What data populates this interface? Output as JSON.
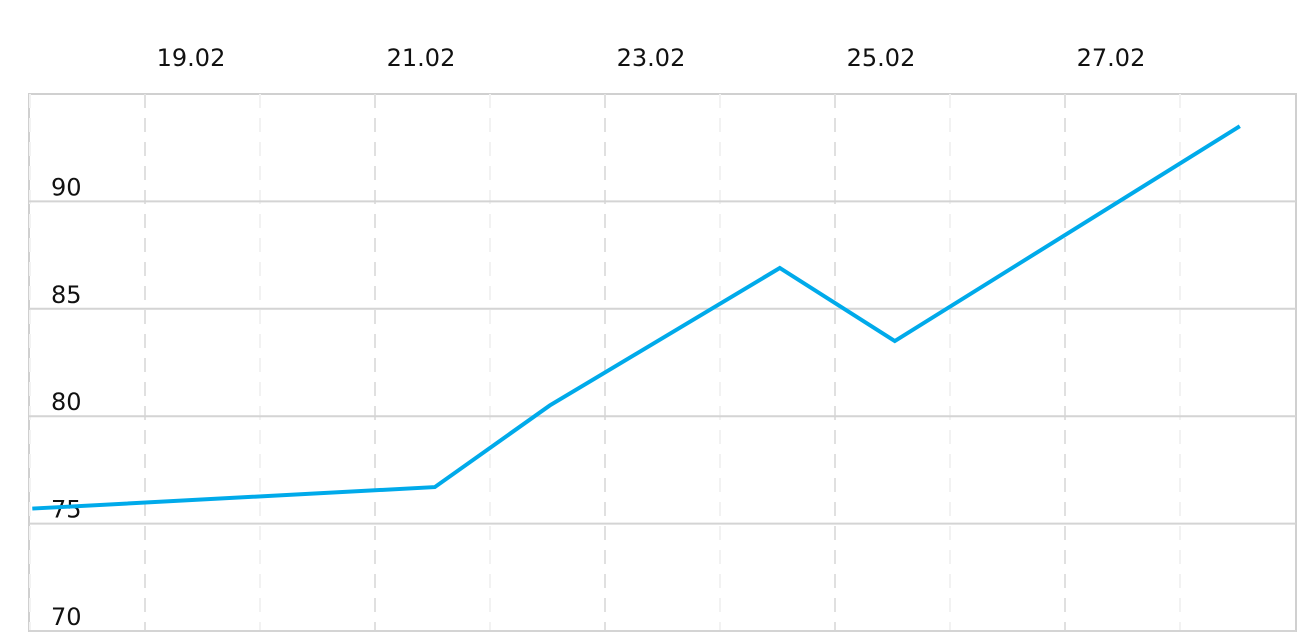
{
  "chart_data": {
    "type": "line",
    "title": "",
    "xlabel": "",
    "ylabel": "",
    "x_ticks": [
      {
        "date": 19,
        "label": "19.02"
      },
      {
        "date": 21,
        "label": "21.02"
      },
      {
        "date": 23,
        "label": "23.02"
      },
      {
        "date": 25,
        "label": "25.02"
      },
      {
        "date": 27,
        "label": "27.02"
      }
    ],
    "y_ticks": [
      70,
      75,
      80,
      85,
      90
    ],
    "xlim": [
      "18.02 00:00",
      "29.02 00:00"
    ],
    "ylim": [
      70,
      95
    ],
    "grid": true,
    "series": [
      {
        "color": "#00aaea",
        "points": [
          {
            "x": "18.02 00:00",
            "y": 75.7
          },
          {
            "x": "21.02 12:00",
            "y": 76.7
          },
          {
            "x": "22.02 12:00",
            "y": 80.5
          },
          {
            "x": "24.02 12:00",
            "y": 86.9
          },
          {
            "x": "25.02 12:00",
            "y": 83.5
          },
          {
            "x": "28.02 12:00",
            "y": 93.5
          }
        ]
      }
    ]
  }
}
